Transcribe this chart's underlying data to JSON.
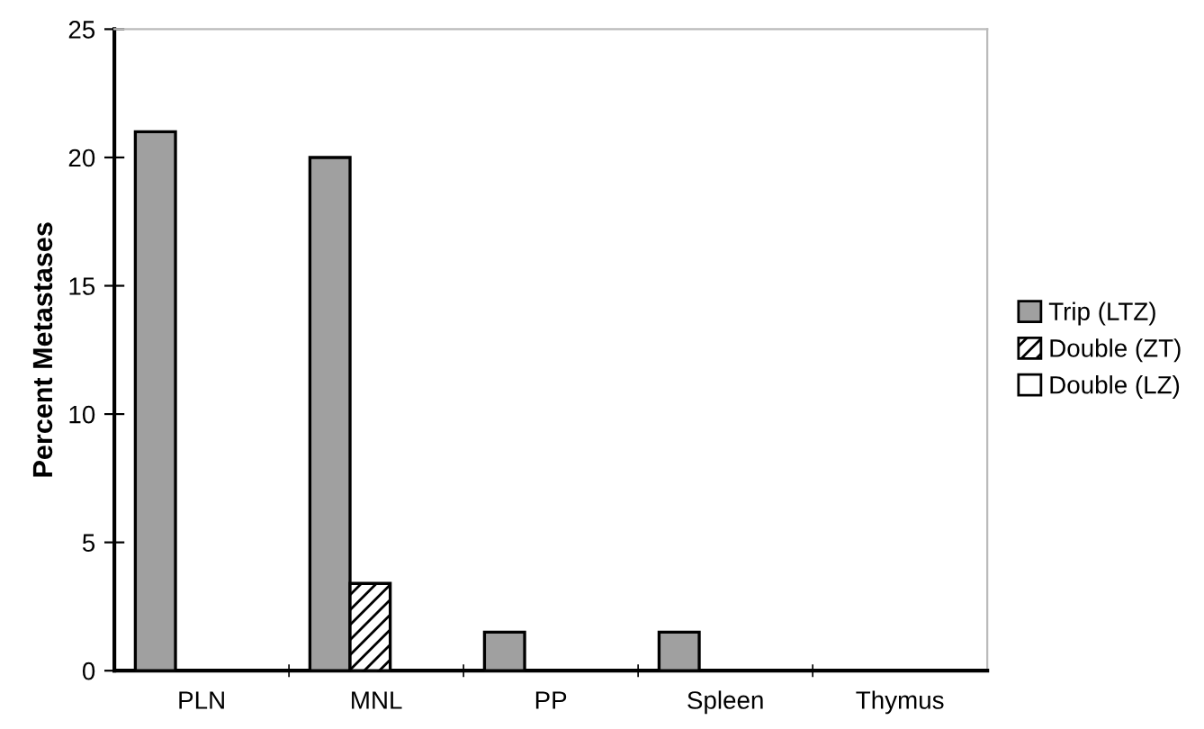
{
  "chart_data": {
    "type": "bar",
    "ylabel": "Percent Metastases",
    "categories": [
      "PLN",
      "MNL",
      "PP",
      "Spleen",
      "Thymus"
    ],
    "series": [
      {
        "name": "Trip (LTZ)",
        "color": "#a0a0a0",
        "values": [
          21,
          20,
          1.5,
          1.5,
          0
        ]
      },
      {
        "name": "Double (ZT)",
        "color": "#000000",
        "values": [
          0,
          3.4,
          0,
          0,
          0
        ]
      },
      {
        "name": "Double (LZ)",
        "color": "#ffffff",
        "values": [
          0,
          0,
          0,
          0,
          0
        ]
      }
    ],
    "ylim": [
      0,
      25
    ],
    "yticks": [
      0,
      5,
      10,
      15,
      20,
      25
    ],
    "grid": false,
    "legend": "right"
  }
}
